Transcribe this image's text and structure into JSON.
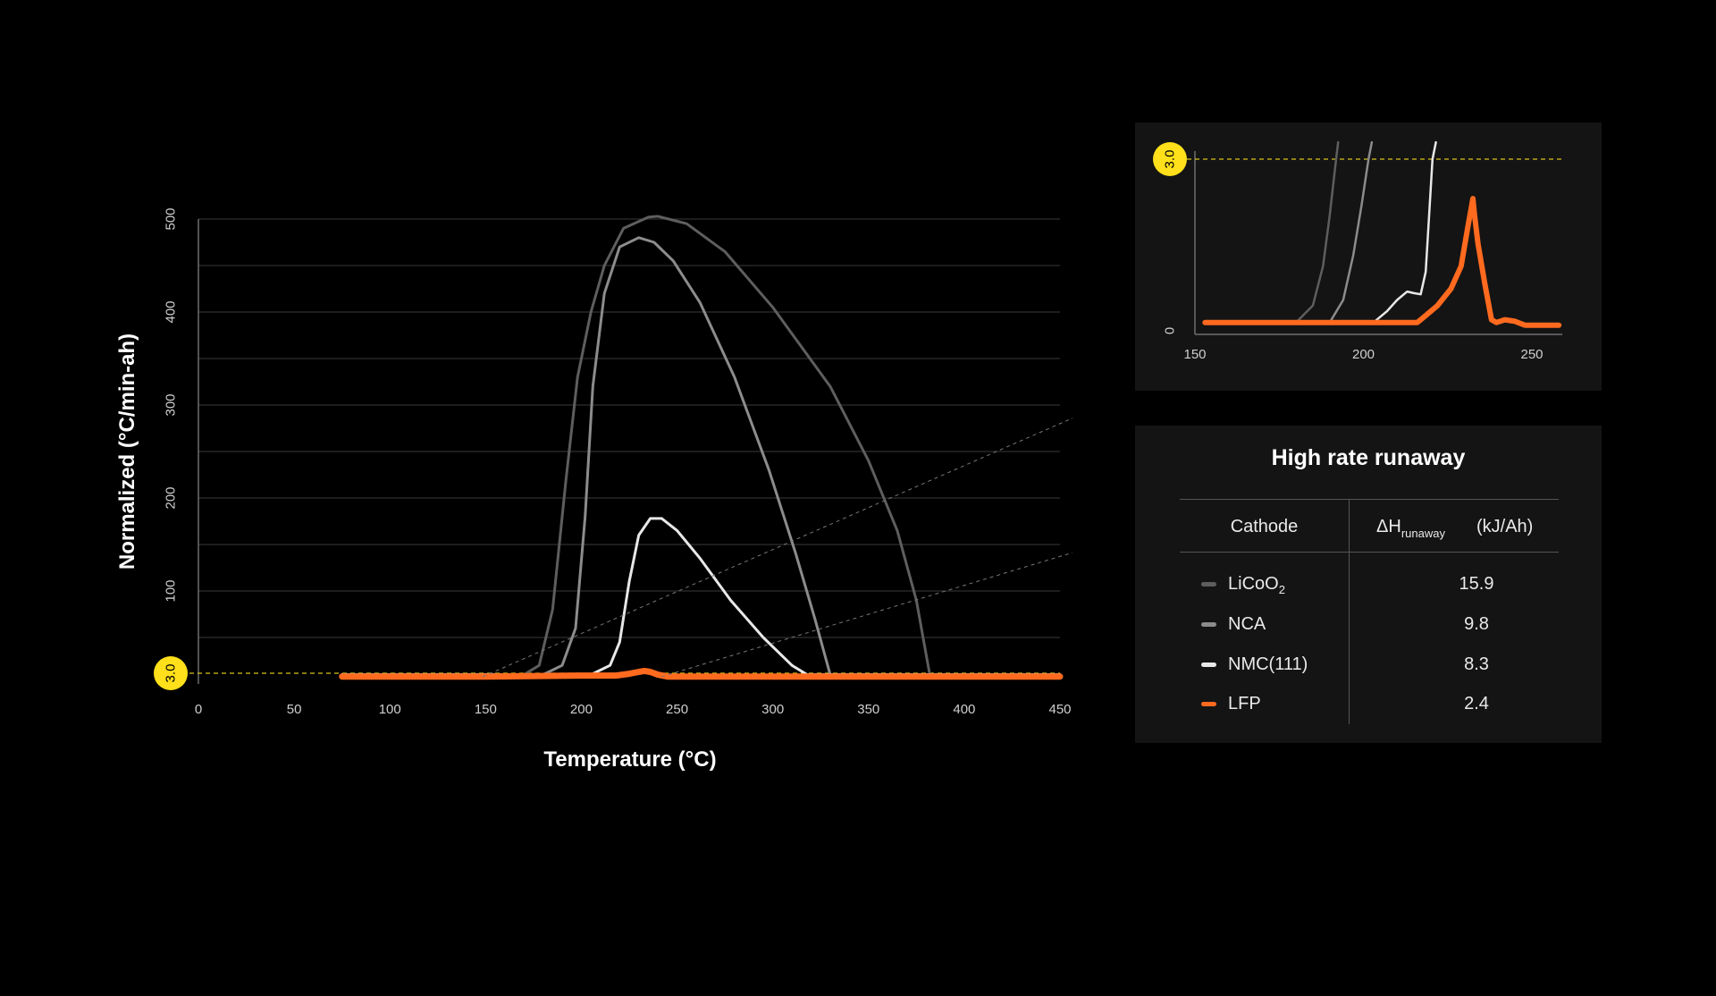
{
  "chart_data": [
    {
      "type": "line",
      "xlabel": "Temperature (°C)",
      "ylabel": "Normalized (°C/min-ah)",
      "xlim": [
        0,
        450
      ],
      "ylim": [
        0,
        500
      ],
      "xticks": [
        "0",
        "50",
        "100",
        "150",
        "200",
        "250",
        "300",
        "350",
        "400",
        "450"
      ],
      "yticks": [
        "100",
        "200",
        "300",
        "400",
        "500"
      ],
      "grid": true,
      "threshold": {
        "value": 3.0,
        "label": "3.0"
      },
      "series": [
        {
          "name": "LiCoO2",
          "color": "#5e5e5e",
          "x": [
            75,
            170,
            178,
            185,
            192,
            198,
            205,
            212,
            222,
            235,
            240,
            255,
            275,
            300,
            330,
            350,
            365,
            375,
            382,
            450
          ],
          "y": [
            10,
            10,
            20,
            80,
            220,
            330,
            400,
            450,
            490,
            502,
            503,
            495,
            465,
            405,
            320,
            240,
            165,
            90,
            10,
            10
          ]
        },
        {
          "name": "NCA",
          "color": "#8c8c8c",
          "x": [
            75,
            180,
            190,
            197,
            202,
            206,
            212,
            220,
            230,
            238,
            248,
            262,
            280,
            298,
            312,
            322,
            330,
            450
          ],
          "y": [
            10,
            10,
            20,
            60,
            180,
            320,
            420,
            470,
            480,
            475,
            455,
            410,
            330,
            230,
            140,
            70,
            10,
            10
          ]
        },
        {
          "name": "NMC(111)",
          "color": "#e8e8e8",
          "x": [
            75,
            205,
            215,
            220,
            225,
            230,
            236,
            242,
            250,
            262,
            278,
            295,
            310,
            318,
            450
          ],
          "y": [
            10,
            10,
            20,
            45,
            110,
            160,
            178,
            178,
            165,
            135,
            90,
            50,
            20,
            10,
            10
          ]
        },
        {
          "name": "LFP",
          "color": "#ff6a1f",
          "x": [
            75,
            150,
            200,
            218,
            225,
            230,
            233,
            236,
            240,
            245,
            250,
            300,
            350,
            400,
            450
          ],
          "y": [
            8,
            8,
            9,
            9,
            11,
            13,
            14,
            13,
            10,
            8,
            8,
            8,
            8,
            8,
            8
          ]
        }
      ]
    },
    {
      "type": "line",
      "xlim": [
        150,
        260
      ],
      "ylim": [
        0,
        3.0
      ],
      "xticks": [
        "150",
        "200",
        "250"
      ],
      "yticks": [
        "0"
      ],
      "threshold": {
        "value": 3.0,
        "label": "3.0"
      },
      "series": [
        {
          "name": "LiCoO2",
          "color": "#5e5e5e",
          "x": [
            180,
            185,
            188,
            190,
            191.5,
            192.5
          ],
          "y": [
            0.1,
            0.4,
            1.1,
            2.0,
            2.8,
            3.3
          ]
        },
        {
          "name": "NCA",
          "color": "#8c8c8c",
          "x": [
            190,
            194,
            197,
            199.5,
            201.5,
            202.5
          ],
          "y": [
            0.1,
            0.5,
            1.3,
            2.2,
            3.0,
            3.3
          ]
        },
        {
          "name": "NMC(111)",
          "color": "#e8e8e8",
          "x": [
            203,
            207,
            210,
            213,
            215,
            217,
            218.5,
            219.5,
            220.5,
            221.5
          ],
          "y": [
            0.1,
            0.3,
            0.5,
            0.65,
            0.62,
            0.6,
            1.0,
            2.0,
            3.0,
            3.3
          ]
        },
        {
          "name": "LFP",
          "color": "#ff6a1f",
          "x": [
            153,
            175,
            200,
            216,
            218,
            222,
            226,
            229,
            231,
            232.5,
            233,
            234,
            236,
            238,
            239.5,
            242,
            245,
            248,
            252,
            258
          ],
          "y": [
            0.1,
            0.1,
            0.1,
            0.1,
            0.2,
            0.4,
            0.7,
            1.1,
            1.8,
            2.3,
            2.0,
            1.5,
            0.8,
            0.15,
            0.1,
            0.15,
            0.12,
            0.05,
            0.05,
            0.05
          ]
        }
      ]
    }
  ],
  "table": {
    "title": "High rate runaway",
    "header_cathode": "Cathode",
    "header_dh": "ΔH",
    "header_dh_sub": "runaway",
    "header_unit": "(kJ/Ah)",
    "rows": [
      {
        "name": "LiCoO",
        "sub": "2",
        "value": "15.9",
        "color": "#5e5e5e"
      },
      {
        "name": "NCA",
        "sub": "",
        "value": "9.8",
        "color": "#8c8c8c"
      },
      {
        "name": "NMC(111)",
        "sub": "",
        "value": "8.3",
        "color": "#e8e8e8"
      },
      {
        "name": "LFP",
        "sub": "",
        "value": "2.4",
        "color": "#ff6a1f"
      }
    ]
  }
}
